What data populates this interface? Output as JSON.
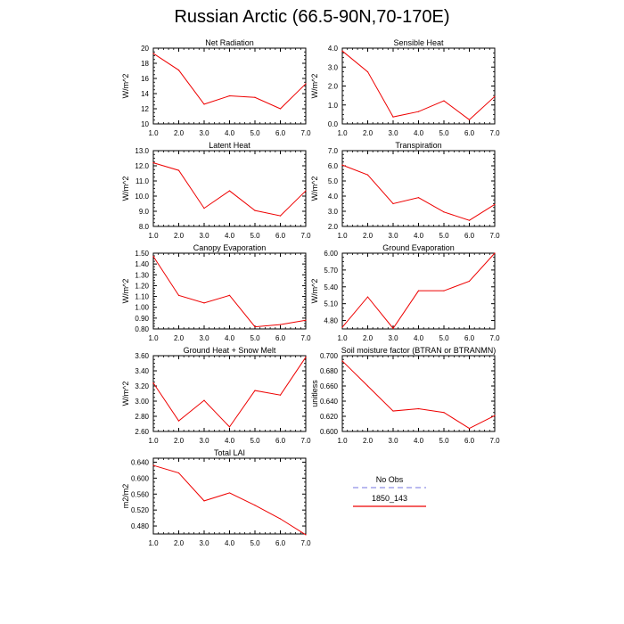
{
  "title": "Russian Arctic (66.5-90N,70-170E)",
  "legend": {
    "items": [
      {
        "name": "No Obs",
        "color": "#8f8fe8",
        "dash": "6,4"
      },
      {
        "name": "1850_143",
        "color": "#ee0000",
        "dash": ""
      }
    ]
  },
  "chart_data": [
    {
      "type": "line",
      "title": "Net Radiation",
      "ylabel": "W/m^2",
      "x": [
        1,
        2,
        3,
        4,
        5,
        6,
        7
      ],
      "xticks": [
        "1.0",
        "2.0",
        "3.0",
        "4.0",
        "5.0",
        "6.0",
        "7.0"
      ],
      "ylim": [
        10,
        20
      ],
      "yticks": [
        "10",
        "12",
        "14",
        "16",
        "18",
        "20"
      ],
      "ytick_values": [
        10,
        12,
        14,
        16,
        18,
        20
      ],
      "series": [
        {
          "name": "1850_143",
          "values": [
            19.3,
            17.1,
            12.6,
            13.7,
            13.5,
            12.0,
            15.3
          ]
        }
      ]
    },
    {
      "type": "line",
      "title": "Sensible Heat",
      "ylabel": "W/m^2",
      "x": [
        1,
        2,
        3,
        4,
        5,
        6,
        7
      ],
      "xticks": [
        "1.0",
        "2.0",
        "3.0",
        "4.0",
        "5.0",
        "6.0",
        "7.0"
      ],
      "ylim": [
        0,
        4
      ],
      "yticks": [
        "0.0",
        "1.0",
        "2.0",
        "3.0",
        "4.0"
      ],
      "ytick_values": [
        0,
        1,
        2,
        3,
        4
      ],
      "series": [
        {
          "name": "1850_143",
          "values": [
            3.85,
            2.75,
            0.37,
            0.65,
            1.22,
            0.22,
            1.45
          ]
        }
      ]
    },
    {
      "type": "line",
      "title": "Latent Heat",
      "ylabel": "W/m^2",
      "x": [
        1,
        2,
        3,
        4,
        5,
        6,
        7
      ],
      "xticks": [
        "1.0",
        "2.0",
        "3.0",
        "4.0",
        "5.0",
        "6.0",
        "7.0"
      ],
      "ylim": [
        8,
        13
      ],
      "yticks": [
        "8.0",
        "9.0",
        "10.0",
        "11.0",
        "12.0",
        "13.0"
      ],
      "ytick_values": [
        8,
        9,
        10,
        11,
        12,
        13
      ],
      "series": [
        {
          "name": "1850_143",
          "values": [
            12.2,
            11.7,
            9.2,
            10.35,
            9.05,
            8.7,
            10.35
          ]
        }
      ]
    },
    {
      "type": "line",
      "title": "Transpiration",
      "ylabel": "W/m^2",
      "x": [
        1,
        2,
        3,
        4,
        5,
        6,
        7
      ],
      "xticks": [
        "1.0",
        "2.0",
        "3.0",
        "4.0",
        "5.0",
        "6.0",
        "7.0"
      ],
      "ylim": [
        2,
        7
      ],
      "yticks": [
        "2.0",
        "3.0",
        "4.0",
        "5.0",
        "6.0",
        "7.0"
      ],
      "ytick_values": [
        2,
        3,
        4,
        5,
        6,
        7
      ],
      "series": [
        {
          "name": "1850_143",
          "values": [
            6.05,
            5.4,
            3.5,
            3.9,
            2.95,
            2.4,
            3.45
          ]
        }
      ]
    },
    {
      "type": "line",
      "title": "Canopy Evaporation",
      "ylabel": "W/m^2",
      "x": [
        1,
        2,
        3,
        4,
        5,
        6,
        7
      ],
      "xticks": [
        "1.0",
        "2.0",
        "3.0",
        "4.0",
        "5.0",
        "6.0",
        "7.0"
      ],
      "ylim": [
        0.8,
        1.5
      ],
      "yticks": [
        "0.80",
        "0.90",
        "1.00",
        "1.10",
        "1.20",
        "1.30",
        "1.40",
        "1.50"
      ],
      "ytick_values": [
        0.8,
        0.9,
        1.0,
        1.1,
        1.2,
        1.3,
        1.4,
        1.5
      ],
      "series": [
        {
          "name": "1850_143",
          "values": [
            1.47,
            1.11,
            1.04,
            1.11,
            0.82,
            0.84,
            0.88
          ]
        }
      ]
    },
    {
      "type": "line",
      "title": "Ground Evaporation",
      "ylabel": "W/m^2",
      "x": [
        1,
        2,
        3,
        4,
        5,
        6,
        7
      ],
      "xticks": [
        "1.0",
        "2.0",
        "3.0",
        "4.0",
        "5.0",
        "6.0",
        "7.0"
      ],
      "ylim": [
        4.65,
        6.0
      ],
      "yticks": [
        "4.80",
        "5.10",
        "5.40",
        "5.70",
        "6.00"
      ],
      "ytick_values": [
        4.8,
        5.1,
        5.4,
        5.7,
        6.0
      ],
      "series": [
        {
          "name": "1850_143",
          "values": [
            4.68,
            5.22,
            4.66,
            5.33,
            5.33,
            5.5,
            6.0
          ]
        }
      ]
    },
    {
      "type": "line",
      "title": "Ground Heat + Snow Melt",
      "ylabel": "W/m^2",
      "x": [
        1,
        2,
        3,
        4,
        5,
        6,
        7
      ],
      "xticks": [
        "1.0",
        "2.0",
        "3.0",
        "4.0",
        "5.0",
        "6.0",
        "7.0"
      ],
      "ylim": [
        2.6,
        3.6
      ],
      "yticks": [
        "2.60",
        "2.80",
        "3.00",
        "3.20",
        "3.40",
        "3.60"
      ],
      "ytick_values": [
        2.6,
        2.8,
        3.0,
        3.2,
        3.4,
        3.6
      ],
      "series": [
        {
          "name": "1850_143",
          "values": [
            3.24,
            2.74,
            3.01,
            2.66,
            3.14,
            3.08,
            3.58
          ]
        }
      ]
    },
    {
      "type": "line",
      "title": "Soil moisture factor (BTRAN or BTRANMN)",
      "ylabel": "unitless",
      "x": [
        1,
        2,
        3,
        4,
        5,
        6,
        7
      ],
      "xticks": [
        "1.0",
        "2.0",
        "3.0",
        "4.0",
        "5.0",
        "6.0",
        "7.0"
      ],
      "ylim": [
        0.6,
        0.7
      ],
      "yticks": [
        "0.600",
        "0.620",
        "0.640",
        "0.660",
        "0.680",
        "0.700"
      ],
      "ytick_values": [
        0.6,
        0.62,
        0.64,
        0.66,
        0.68,
        0.7
      ],
      "series": [
        {
          "name": "1850_143",
          "values": [
            0.693,
            0.66,
            0.627,
            0.63,
            0.625,
            0.604,
            0.621
          ]
        }
      ]
    },
    {
      "type": "line",
      "title": "Total LAI",
      "ylabel": "m2/m2",
      "x": [
        1,
        2,
        3,
        4,
        5,
        6,
        7
      ],
      "xticks": [
        "1.0",
        "2.0",
        "3.0",
        "4.0",
        "5.0",
        "6.0",
        "7.0"
      ],
      "ylim": [
        0.46,
        0.65
      ],
      "yticks": [
        "0.480",
        "0.520",
        "0.560",
        "0.600",
        "0.640"
      ],
      "ytick_values": [
        0.48,
        0.52,
        0.56,
        0.6,
        0.64
      ],
      "series": [
        {
          "name": "1850_143",
          "values": [
            0.632,
            0.613,
            0.543,
            0.563,
            0.532,
            0.498,
            0.458
          ]
        }
      ]
    }
  ]
}
